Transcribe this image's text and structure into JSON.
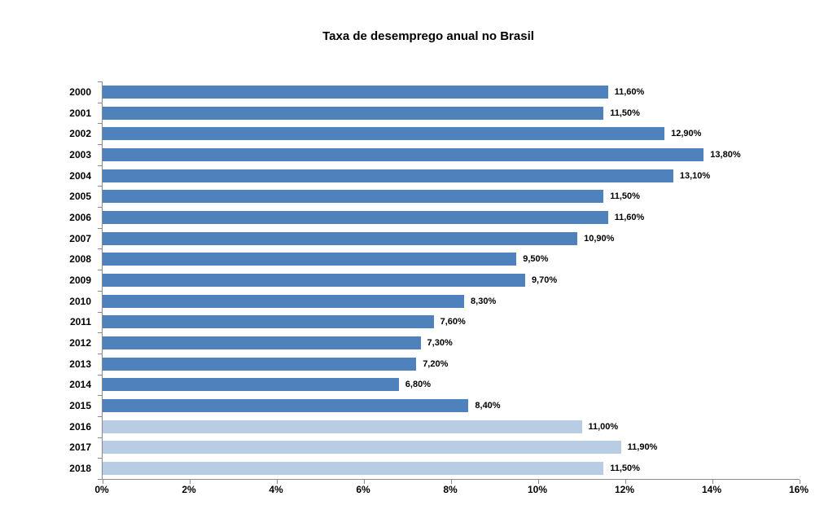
{
  "title": "Taxa de desemprego anual no Brasil",
  "chart_data": {
    "type": "bar",
    "orientation": "horizontal",
    "title": "Taxa de desemprego anual no Brasil",
    "categories": [
      "2000",
      "2001",
      "2002",
      "2003",
      "2004",
      "2005",
      "2006",
      "2007",
      "2008",
      "2009",
      "2010",
      "2011",
      "2012",
      "2013",
      "2014",
      "2015",
      "2016",
      "2017",
      "2018"
    ],
    "values": [
      11.6,
      11.5,
      12.9,
      13.8,
      13.1,
      11.5,
      11.6,
      10.9,
      9.5,
      9.7,
      8.3,
      7.6,
      7.3,
      7.2,
      6.8,
      8.4,
      11.0,
      11.9,
      11.5
    ],
    "value_labels": [
      "11,60%",
      "11,50%",
      "12,90%",
      "13,80%",
      "13,10%",
      "11,50%",
      "11,60%",
      "10,90%",
      "9,50%",
      "9,70%",
      "8,30%",
      "7,60%",
      "7,30%",
      "7,20%",
      "6,80%",
      "8,40%",
      "11,00%",
      "11,90%",
      "11,50%"
    ],
    "bar_colors": [
      "#4F81BD",
      "#4F81BD",
      "#4F81BD",
      "#4F81BD",
      "#4F81BD",
      "#4F81BD",
      "#4F81BD",
      "#4F81BD",
      "#4F81BD",
      "#4F81BD",
      "#4F81BD",
      "#4F81BD",
      "#4F81BD",
      "#4F81BD",
      "#4F81BD",
      "#4F81BD",
      "#B8CCE4",
      "#B8CCE4",
      "#B8CCE4"
    ],
    "x_ticks": [
      "0%",
      "2%",
      "4%",
      "6%",
      "8%",
      "10%",
      "12%",
      "14%",
      "16%"
    ],
    "xlim": [
      0,
      16
    ],
    "xlabel": "",
    "ylabel": "",
    "grid": false,
    "legend": "none",
    "colors": {
      "bar_dark": "#4F81BD",
      "bar_light": "#B8CCE4",
      "axis": "#8A8A8A",
      "text": "#000000",
      "background": "#FFFFFF"
    }
  }
}
